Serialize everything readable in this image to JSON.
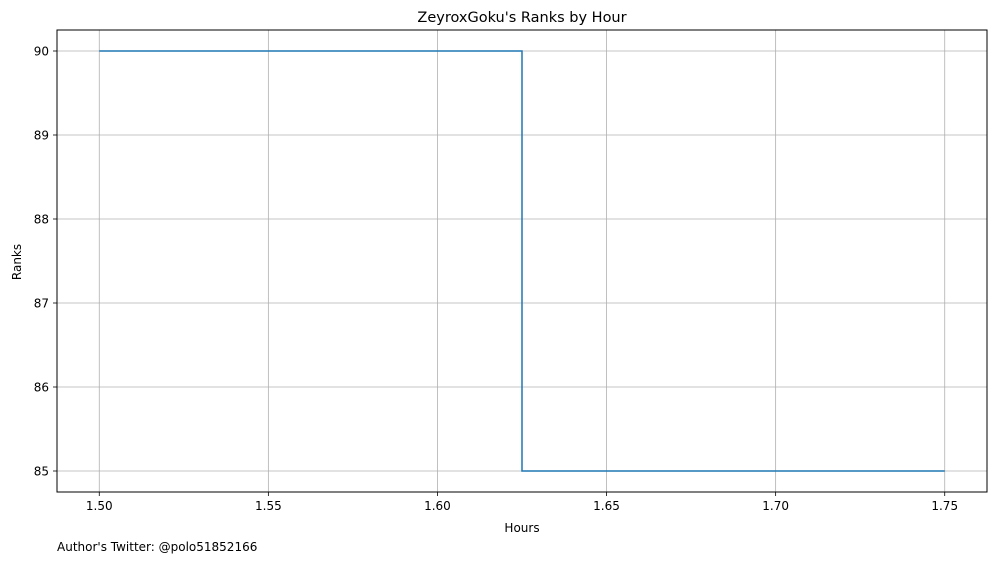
{
  "chart_data": {
    "type": "line",
    "drawstyle": "steps-post",
    "title": "ZeyroxGoku's Ranks by Hour",
    "xlabel": "Hours",
    "ylabel": "Ranks",
    "xlim": [
      1.4875,
      1.7625
    ],
    "ylim": [
      90.25,
      84.75
    ],
    "y_inverted": true,
    "grid": true,
    "xticks": [
      1.5,
      1.55,
      1.6,
      1.65,
      1.7,
      1.75
    ],
    "xtick_labels": [
      "1.50",
      "1.55",
      "1.60",
      "1.65",
      "1.70",
      "1.75"
    ],
    "yticks": [
      85,
      86,
      87,
      88,
      89,
      90
    ],
    "ytick_labels": [
      "85",
      "86",
      "87",
      "88",
      "89",
      "90"
    ],
    "series": [
      {
        "color": "#1f77b4",
        "points": [
          {
            "x": 1.5,
            "y": 90
          },
          {
            "x": 1.625,
            "y": 85
          },
          {
            "x": 1.75,
            "y": 85
          }
        ]
      }
    ]
  },
  "footer": {
    "author": "Author's Twitter: @polo51852166"
  }
}
